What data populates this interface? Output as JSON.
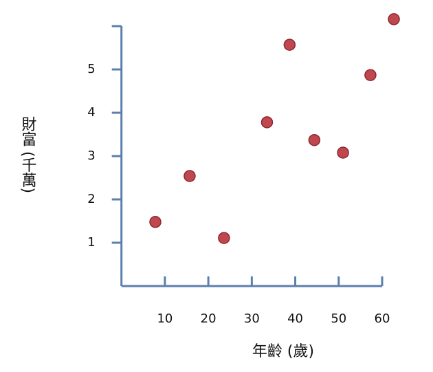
{
  "chart_data": {
    "type": "scatter",
    "x_label": "年齡 (歲)",
    "y_label": "財富 (千萬)",
    "series": [
      {
        "color": "#c1474e",
        "x": [
          7.8,
          15.7,
          23.6,
          33.5,
          38.7,
          44.4,
          51.0,
          57.3,
          62.7
        ],
        "values": [
          1.48,
          2.54,
          1.11,
          3.78,
          5.57,
          3.37,
          3.08,
          4.87,
          6.16
        ]
      }
    ],
    "xlim": [
      0,
      60
    ],
    "ylim": [
      0,
      6
    ],
    "xticks": [
      10,
      20,
      30,
      40,
      50,
      60
    ],
    "yticks": [
      1,
      2,
      3,
      4,
      5
    ]
  }
}
